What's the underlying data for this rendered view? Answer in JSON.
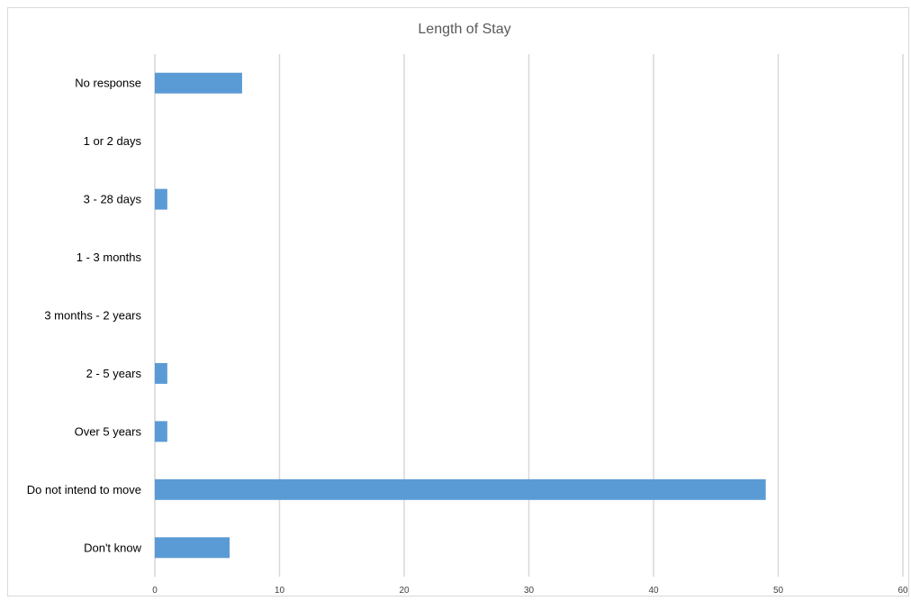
{
  "chart_data": {
    "type": "bar",
    "orientation": "horizontal",
    "title": "Length of Stay",
    "xlabel": "",
    "ylabel": "",
    "categories": [
      "No response",
      "1 or 2 days",
      "3 - 28 days",
      "1 - 3 months",
      "3 months - 2 years",
      "2 - 5 years",
      "Over 5 years",
      "Do not intend to move",
      "Don't know"
    ],
    "values": [
      7,
      0,
      1,
      0,
      0,
      1,
      1,
      49,
      6
    ],
    "xlim": [
      0,
      60
    ],
    "xticks": [
      0,
      10,
      20,
      30,
      40,
      50,
      60
    ],
    "grid": "vertical",
    "legend": "none",
    "bar_color": "#5b9bd5"
  }
}
